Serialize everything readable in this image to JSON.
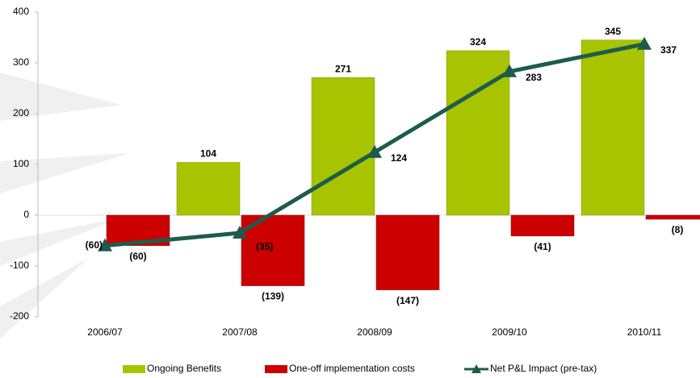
{
  "chart_data": {
    "type": "bar-line",
    "categories": [
      "2006/07",
      "2007/08",
      "2008/09",
      "2009/10",
      "2010/11"
    ],
    "series": [
      {
        "name": "Ongoing Benefits",
        "type": "bar",
        "color": "#a8c400",
        "values": [
          null,
          104,
          271,
          324,
          345
        ]
      },
      {
        "name": "One-off implementation costs",
        "type": "bar",
        "color": "#cc0000",
        "values": [
          -60,
          -139,
          -147,
          -41,
          -8
        ],
        "value_labels": [
          "(60)",
          "(139)",
          "(147)",
          "(41)",
          "(8)"
        ]
      },
      {
        "name": "Net P&L Impact (pre-tax)",
        "type": "line",
        "color": "#1d5c4c",
        "values": [
          -60,
          -35,
          124,
          283,
          337
        ],
        "value_labels": [
          "(60)",
          "(35)",
          "124",
          "283",
          "337"
        ]
      }
    ],
    "ylim": [
      -200,
      400
    ],
    "yticks": [
      -200,
      -100,
      0,
      100,
      200,
      300,
      400
    ]
  }
}
